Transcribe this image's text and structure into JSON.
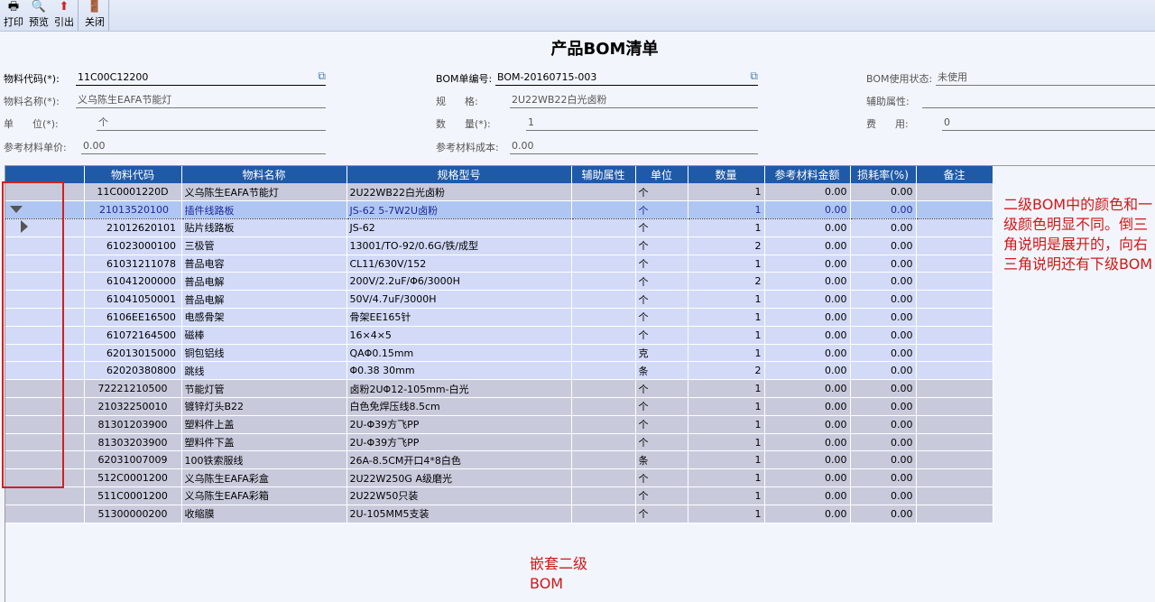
{
  "toolbar": {
    "buttons": [
      {
        "label": "打印",
        "icon": "printer-icon"
      },
      {
        "label": "预览",
        "icon": "preview-icon"
      },
      {
        "label": "引出",
        "icon": "export-icon"
      },
      {
        "label": "关闭",
        "icon": "close-door-icon"
      }
    ]
  },
  "title": "产品BOM清单",
  "form": {
    "item_code": {
      "label": "物料代码(*):",
      "value": "11C00C12200"
    },
    "item_name": {
      "label": "物料名称(*):",
      "value": "义乌陈生EAFA节能灯"
    },
    "unit": {
      "label": "单      位(*):",
      "value": "个"
    },
    "ref_price": {
      "label": "参考材料单价:",
      "value": "0.00"
    },
    "bom_no": {
      "label": "BOM单编号:",
      "value": "BOM-20160715-003"
    },
    "spec": {
      "label": "规      格:",
      "value": "2U22WB22白光卤粉"
    },
    "qty": {
      "label": "数      量(*):",
      "value": "1"
    },
    "ref_cost": {
      "label": "参考材料成本:",
      "value": "0.00"
    },
    "status": {
      "label": "BOM使用状态:",
      "value": "未使用"
    },
    "aux": {
      "label": "辅助属性:",
      "value": ""
    },
    "fee": {
      "label": "费      用:",
      "value": "0"
    }
  },
  "table": {
    "headers": [
      "",
      "物料代码",
      "物料名称",
      "规格型号",
      "辅助属性",
      "单位",
      "数量",
      "参考材料金额",
      "损耗率(%)",
      "备注"
    ],
    "rows": [
      {
        "level": 1,
        "tree": "",
        "code": "11C0001220D",
        "name": "义乌陈生EAFA节能灯",
        "spec": "2U22WB22白光卤粉",
        "aux": "",
        "unit": "个",
        "qty": "1",
        "amount": "0.00",
        "loss": "0.00",
        "note": ""
      },
      {
        "level": 2,
        "sel": true,
        "tree": "down",
        "code": "21013520100",
        "name": "插件线路板",
        "spec": "JS-62 5-7W2U卤粉",
        "aux": "",
        "unit": "个",
        "qty": "1",
        "amount": "0.00",
        "loss": "0.00",
        "note": ""
      },
      {
        "level": 2,
        "tree": "right",
        "code": "21012620101",
        "name": "贴片线路板",
        "spec": "JS-62",
        "aux": "",
        "unit": "个",
        "qty": "1",
        "amount": "0.00",
        "loss": "0.00",
        "note": ""
      },
      {
        "level": 2,
        "tree": "",
        "code": "61023000100",
        "name": "三极管",
        "spec": "13001/TO-92/0.6G/铁/成型",
        "aux": "",
        "unit": "个",
        "qty": "2",
        "amount": "0.00",
        "loss": "0.00",
        "note": ""
      },
      {
        "level": 2,
        "tree": "",
        "code": "61031211078",
        "name": "普品电容",
        "spec": "CL11/630V/152",
        "aux": "",
        "unit": "个",
        "qty": "1",
        "amount": "0.00",
        "loss": "0.00",
        "note": ""
      },
      {
        "level": 2,
        "tree": "",
        "code": "61041200000",
        "name": "普品电解",
        "spec": "200V/2.2uF/Φ6/3000H",
        "aux": "",
        "unit": "个",
        "qty": "2",
        "amount": "0.00",
        "loss": "0.00",
        "note": ""
      },
      {
        "level": 2,
        "tree": "",
        "code": "61041050001",
        "name": "普品电解",
        "spec": "50V/4.7uF/3000H",
        "aux": "",
        "unit": "个",
        "qty": "1",
        "amount": "0.00",
        "loss": "0.00",
        "note": ""
      },
      {
        "level": 2,
        "tree": "",
        "code": "6106EE16500",
        "name": "电感骨架",
        "spec": "骨架EE165针",
        "aux": "",
        "unit": "个",
        "qty": "1",
        "amount": "0.00",
        "loss": "0.00",
        "note": ""
      },
      {
        "level": 2,
        "tree": "",
        "code": "61072164500",
        "name": "磁棒",
        "spec": "16×4×5",
        "aux": "",
        "unit": "个",
        "qty": "1",
        "amount": "0.00",
        "loss": "0.00",
        "note": ""
      },
      {
        "level": 2,
        "tree": "",
        "code": "62013015000",
        "name": "铜包铝线",
        "spec": "QAΦ0.15mm",
        "aux": "",
        "unit": "克",
        "qty": "1",
        "amount": "0.00",
        "loss": "0.00",
        "note": ""
      },
      {
        "level": 2,
        "tree": "",
        "code": "62020380800",
        "name": "跳线",
        "spec": "Φ0.38 30mm",
        "aux": "",
        "unit": "条",
        "qty": "2",
        "amount": "0.00",
        "loss": "0.00",
        "note": ""
      },
      {
        "level": 1,
        "tree": "",
        "code": "72221210500",
        "name": "节能灯管",
        "spec": "卤粉2UΦ12-105mm-白光",
        "aux": "",
        "unit": "个",
        "qty": "1",
        "amount": "0.00",
        "loss": "0.00",
        "note": ""
      },
      {
        "level": 1,
        "tree": "",
        "code": "21032250010",
        "name": "镀锌灯头B22",
        "spec": "白色免焊压线8.5cm",
        "aux": "",
        "unit": "个",
        "qty": "1",
        "amount": "0.00",
        "loss": "0.00",
        "note": ""
      },
      {
        "level": 1,
        "tree": "",
        "code": "81301203900",
        "name": "塑料件上盖",
        "spec": "2U-Φ39方飞PP",
        "aux": "",
        "unit": "个",
        "qty": "1",
        "amount": "0.00",
        "loss": "0.00",
        "note": ""
      },
      {
        "level": 1,
        "tree": "",
        "code": "81303203900",
        "name": "塑料件下盖",
        "spec": "2U-Φ39方飞PP",
        "aux": "",
        "unit": "个",
        "qty": "1",
        "amount": "0.00",
        "loss": "0.00",
        "note": ""
      },
      {
        "level": 1,
        "tree": "",
        "code": "62031007009",
        "name": "100铁索服线",
        "spec": "26A-8.5CM开口4*8白色",
        "aux": "",
        "unit": "条",
        "qty": "1",
        "amount": "0.00",
        "loss": "0.00",
        "note": ""
      },
      {
        "level": 1,
        "tree": "",
        "code": "512C0001200",
        "name": "义乌陈生EAFA彩盒",
        "spec": "2U22W250G A级磨光",
        "aux": "",
        "unit": "个",
        "qty": "1",
        "amount": "0.00",
        "loss": "0.00",
        "note": ""
      },
      {
        "level": 1,
        "tree": "",
        "code": "511C0001200",
        "name": "义乌陈生EAFA彩箱",
        "spec": "2U22W50只装",
        "aux": "",
        "unit": "个",
        "qty": "1",
        "amount": "0.00",
        "loss": "0.00",
        "note": ""
      },
      {
        "level": 1,
        "tree": "",
        "code": "51300000200",
        "name": "收缩膜",
        "spec": "2U-105MM5支装",
        "aux": "",
        "unit": "个",
        "qty": "1",
        "amount": "0.00",
        "loss": "0.00",
        "note": ""
      }
    ]
  },
  "annotations": {
    "right": "二级BOM中的颜色和一级颜色明显不同。倒三角说明是展开的，向右三角说明还有下级BOM",
    "bottom": "嵌套二级BOM"
  },
  "colors": {
    "header": "#1f5aa8",
    "level1_row": "#c8cadc",
    "level2_row": "#d2daf8",
    "selected_row": "#b0c6f2",
    "annotation": "#d01818"
  }
}
